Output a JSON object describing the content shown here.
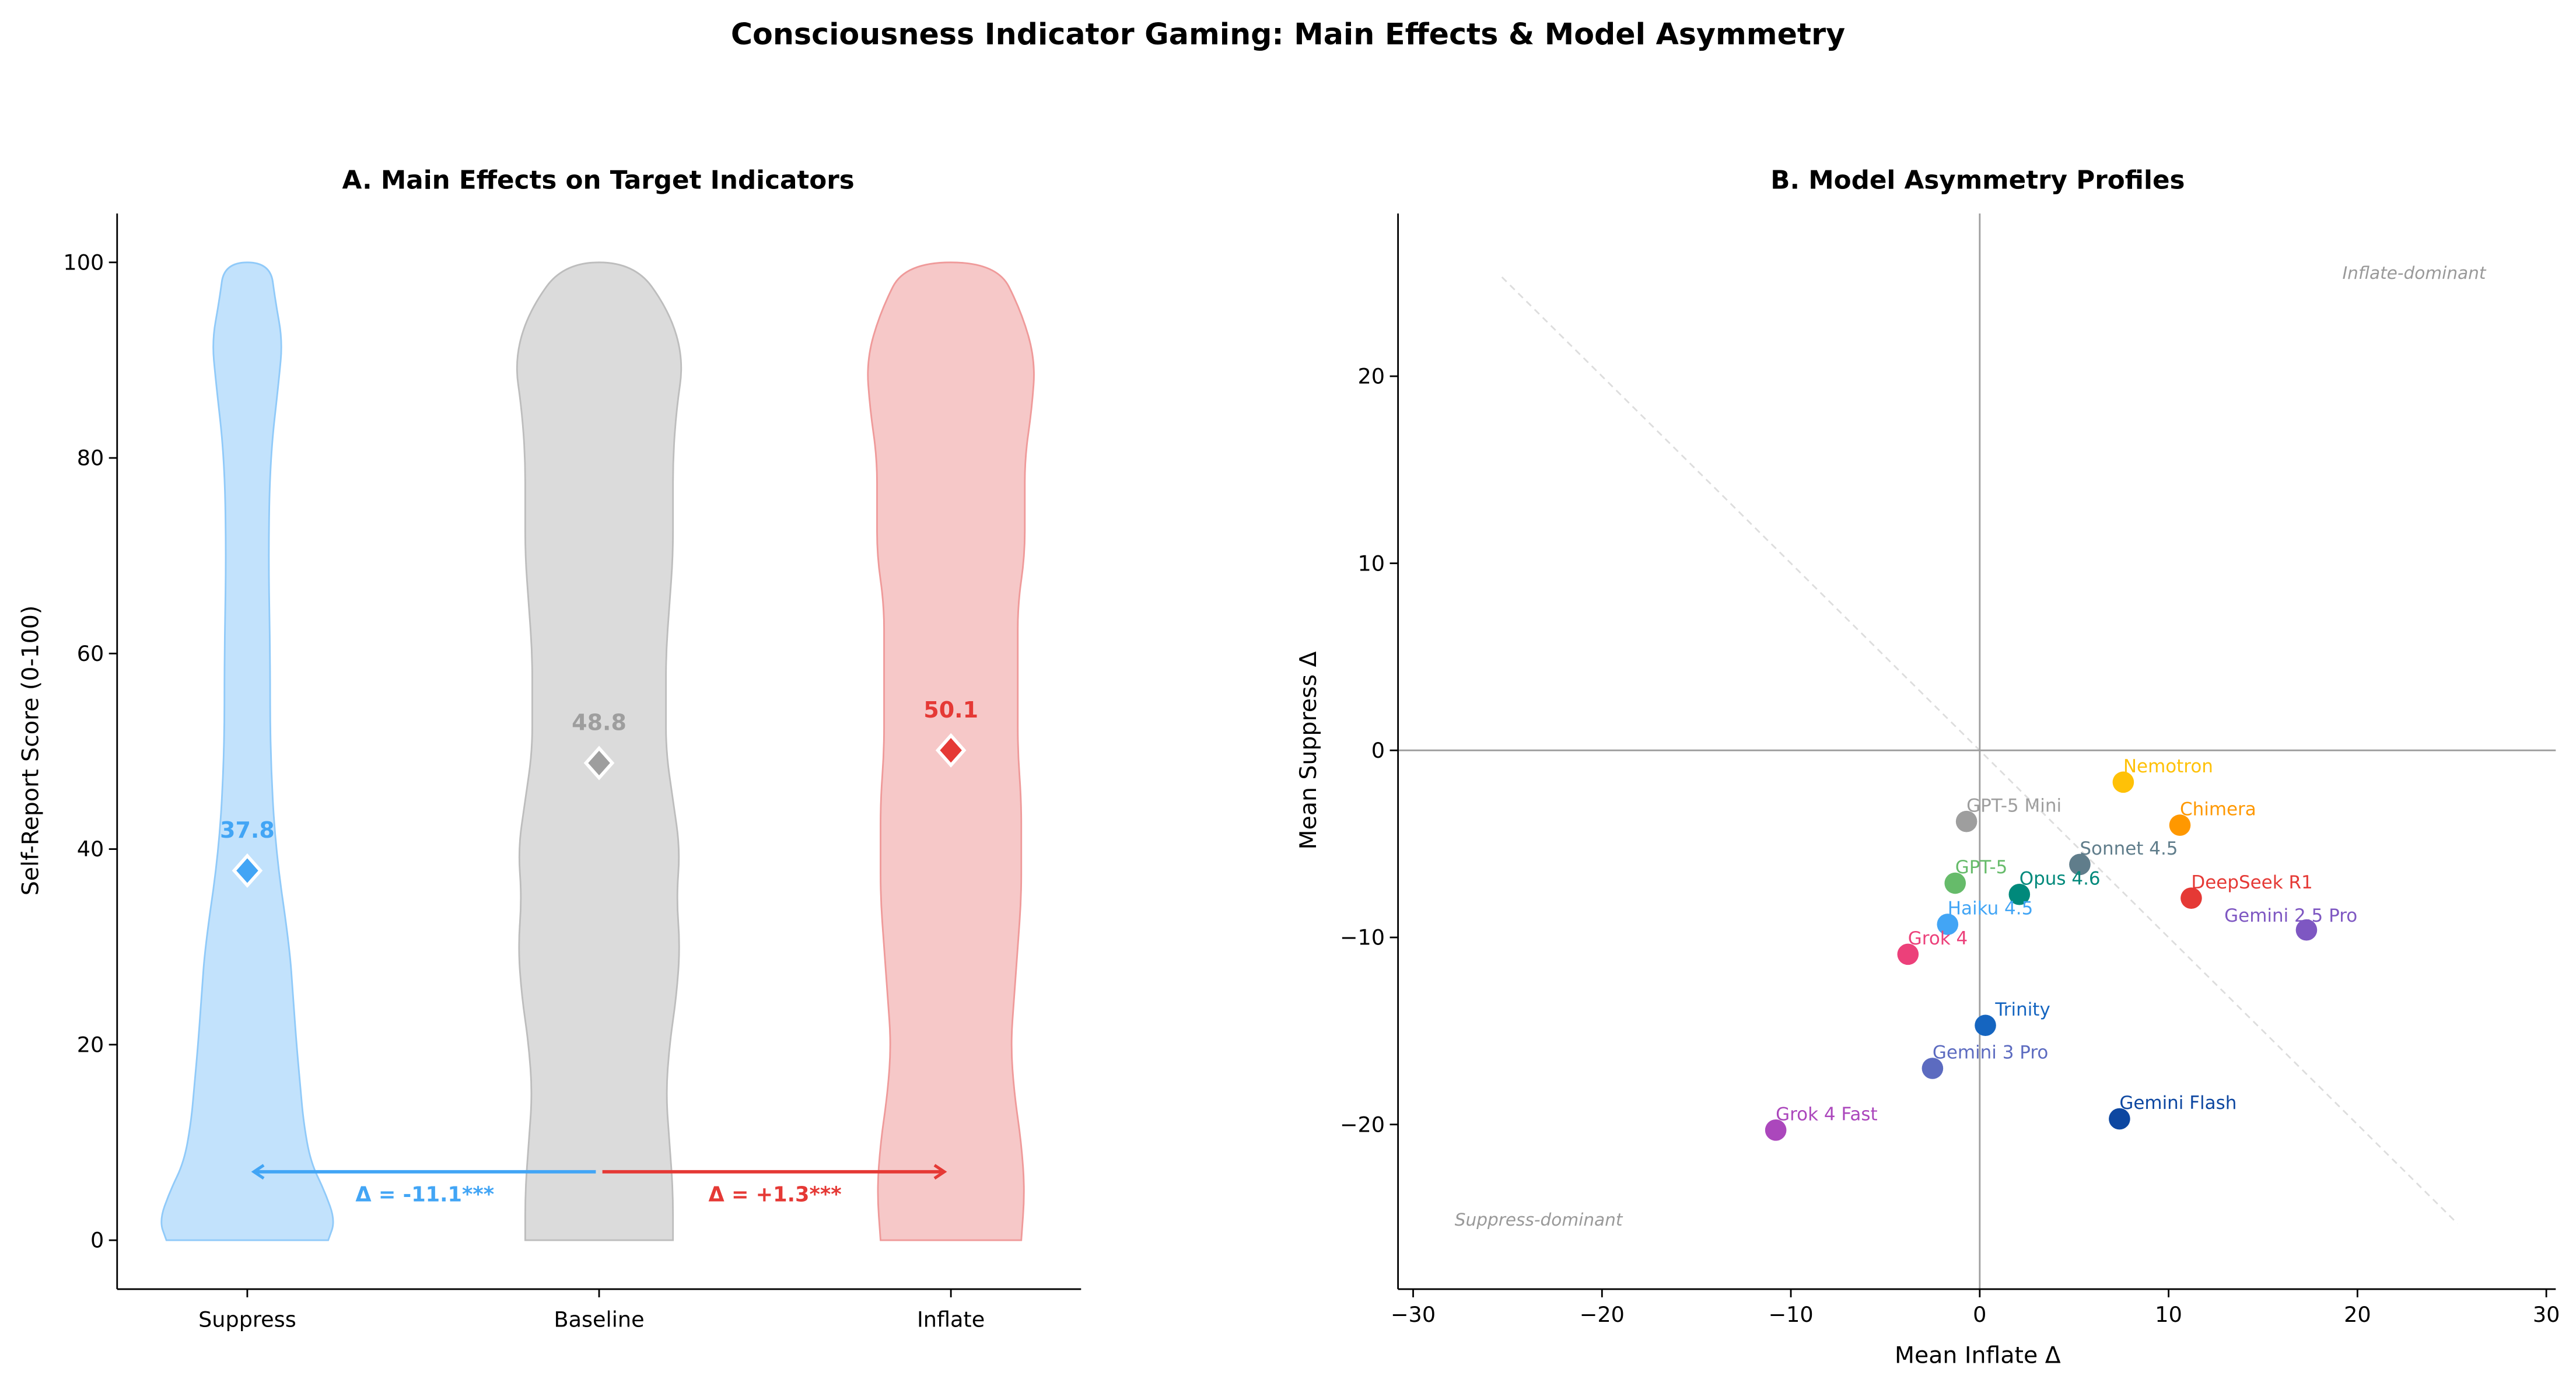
{
  "title": "Consciousness Indicator Gaming: Main Effects & Model Asymmetry",
  "chart_data": [
    {
      "type": "violin",
      "title": "A. Main Effects on Target Indicators",
      "xlabel": "",
      "ylabel": "Self-Report Score (0-100)",
      "categories": [
        "Suppress",
        "Baseline",
        "Inflate"
      ],
      "ylim": [
        -5,
        105
      ],
      "yticks": [
        0,
        20,
        40,
        60,
        80,
        100
      ],
      "colors": {
        "fill": [
          "#90caf9",
          "#bdbdbd",
          "#ef9a9a"
        ],
        "edge": [
          "#90caf9",
          "#bdbdbd",
          "#ef9a9a"
        ],
        "marker": [
          "#42a5f5",
          "#9e9e9e",
          "#e53935"
        ]
      },
      "means": [
        37.8,
        48.8,
        50.1
      ],
      "mean_labels": [
        "37.8",
        "48.8",
        "50.1"
      ],
      "density_profiles": [
        {
          "y": [
            0,
            2,
            5,
            8,
            12,
            16,
            20,
            25,
            30,
            40,
            50,
            60,
            70,
            80,
            88,
            92,
            96,
            100
          ],
          "halfwidth": [
            0.23,
            0.25,
            0.22,
            0.18,
            0.16,
            0.15,
            0.14,
            0.13,
            0.12,
            0.08,
            0.065,
            0.065,
            0.06,
            0.065,
            0.09,
            0.1,
            0.08,
            0.065
          ]
        },
        {
          "y": [
            0,
            5,
            10,
            15,
            20,
            25,
            30,
            35,
            40,
            45,
            50,
            55,
            60,
            65,
            70,
            75,
            80,
            85,
            90,
            95,
            100
          ],
          "halfwidth": [
            0.21,
            0.21,
            0.2,
            0.19,
            0.2,
            0.22,
            0.23,
            0.22,
            0.23,
            0.21,
            0.19,
            0.19,
            0.19,
            0.2,
            0.21,
            0.21,
            0.21,
            0.22,
            0.24,
            0.2,
            0.1
          ]
        },
        {
          "y": [
            0,
            5,
            10,
            15,
            20,
            25,
            30,
            35,
            40,
            45,
            50,
            55,
            60,
            65,
            70,
            75,
            80,
            85,
            90,
            95,
            100
          ],
          "halfwidth": [
            0.2,
            0.21,
            0.2,
            0.18,
            0.17,
            0.18,
            0.19,
            0.2,
            0.2,
            0.2,
            0.19,
            0.19,
            0.19,
            0.19,
            0.21,
            0.21,
            0.21,
            0.23,
            0.24,
            0.2,
            0.13
          ]
        }
      ],
      "annotations": [
        {
          "text": "Δ = -11.1***",
          "from": "Baseline",
          "to": "Suppress",
          "y": 7,
          "color": "#42a5f5"
        },
        {
          "text": "Δ = +1.3***",
          "from": "Baseline",
          "to": "Inflate",
          "y": 7,
          "color": "#e53935"
        }
      ]
    },
    {
      "type": "scatter",
      "title": "B. Model Asymmetry Profiles",
      "xlabel": "Mean Inflate Δ",
      "ylabel": "Mean Suppress Δ",
      "xlim": [
        -30.8,
        30.5
      ],
      "ylim": [
        -28.8,
        28.7
      ],
      "xticks": [
        -30,
        -20,
        -10,
        0,
        10,
        20,
        30
      ],
      "yticks": [
        -20,
        -10,
        0,
        10,
        20
      ],
      "reference_lines": {
        "x0": true,
        "y0": true,
        "diagonal": "y = -x (dashed)"
      },
      "quadrant_labels": [
        {
          "text": "Inflate-dominant",
          "x": 19.2,
          "y": 25.2
        },
        {
          "text": "Suppress-dominant",
          "x": -27.8,
          "y": -25.4
        }
      ],
      "points": [
        {
          "name": "Nemotron",
          "x": 7.6,
          "y": -1.7,
          "color": "#ffc107"
        },
        {
          "name": "Chimera",
          "x": 10.6,
          "y": -4.0,
          "color": "#ff9800"
        },
        {
          "name": "GPT-5 Mini",
          "x": -0.7,
          "y": -3.8,
          "color": "#9e9e9e"
        },
        {
          "name": "Sonnet 4.5",
          "x": 5.3,
          "y": -6.1,
          "color": "#607d8b"
        },
        {
          "name": "GPT-5",
          "x": -1.3,
          "y": -7.1,
          "color": "#66bb6a"
        },
        {
          "name": "Opus 4.6",
          "x": 2.1,
          "y": -7.7,
          "color": "#00897b"
        },
        {
          "name": "DeepSeek R1",
          "x": 11.2,
          "y": -7.9,
          "color": "#e53935"
        },
        {
          "name": "Gemini 2.5 Pro",
          "x": 17.3,
          "y": -9.6,
          "color": "#7e57c2"
        },
        {
          "name": "Haiku 4.5",
          "x": -1.7,
          "y": -9.3,
          "color": "#42a5f5"
        },
        {
          "name": "Grok 4",
          "x": -3.8,
          "y": -10.9,
          "color": "#ec407a"
        },
        {
          "name": "Trinity",
          "x": 0.3,
          "y": -14.7,
          "color": "#1565c0"
        },
        {
          "name": "Gemini 3 Pro",
          "x": -2.5,
          "y": -17.0,
          "color": "#5c6bc0"
        },
        {
          "name": "Gemini Flash",
          "x": 7.4,
          "y": -19.7,
          "color": "#0d47a1"
        },
        {
          "name": "Grok 4 Fast",
          "x": -10.8,
          "y": -20.3,
          "color": "#ab47bc"
        }
      ]
    }
  ]
}
